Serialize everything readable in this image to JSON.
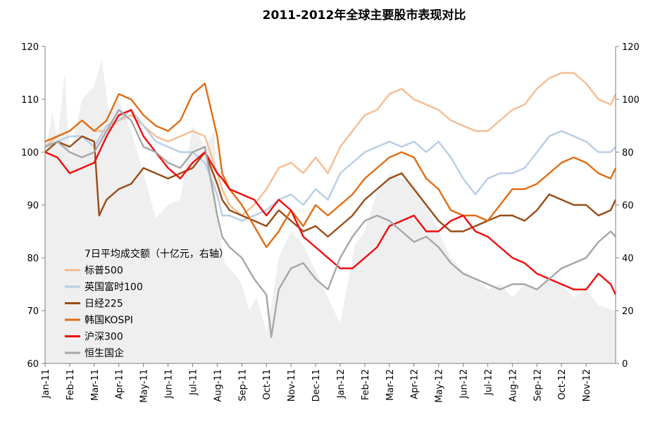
{
  "chart_data": {
    "type": "line",
    "title": "2011-2012年全球主要股市表现对比",
    "x_axis": {
      "tick_labels": [
        "Jan-11",
        "Feb-11",
        "Mar-11",
        "Apr-11",
        "May-11",
        "Jun-11",
        "Jul-11",
        "Aug-11",
        "Sep-11",
        "Oct-11",
        "Nov-11",
        "Dec-11",
        "Jan-12",
        "Feb-12",
        "Mar-12",
        "Apr-12",
        "May-12",
        "Jun-12",
        "Jul-12",
        "Aug-12",
        "Sep-12",
        "Oct-12",
        "Nov-12"
      ],
      "range_months": [
        0,
        23.2
      ]
    },
    "y_left": {
      "ticks": [
        60,
        70,
        80,
        90,
        100,
        110,
        120
      ],
      "range": [
        60,
        120
      ]
    },
    "y_right": {
      "ticks": [
        0,
        20,
        40,
        60,
        80,
        100,
        120
      ],
      "range": [
        0,
        120
      ]
    },
    "grid": false,
    "legend_position": "lower-left",
    "series": [
      {
        "name": "7日平均成交额（十亿元，右轴）",
        "kind": "area",
        "axis": "right",
        "color": "#efefef",
        "x": [
          0,
          0.3,
          0.5,
          0.8,
          1.0,
          1.5,
          2.0,
          2.3,
          2.6,
          3.0,
          3.5,
          4.0,
          4.5,
          5.0,
          5.5,
          6.0,
          6.5,
          6.9,
          7.0,
          7.3,
          7.6,
          8.0,
          8.3,
          8.6,
          9.0,
          9.2,
          9.5,
          10.0,
          10.5,
          11.0,
          11.5,
          12.0,
          12.3,
          12.6,
          13.0,
          13.5,
          14.0,
          14.5,
          15.0,
          15.5,
          16.0,
          16.5,
          17.0,
          17.5,
          18.0,
          18.5,
          19.0,
          19.5,
          20.0,
          20.5,
          21.0,
          21.5,
          22.0,
          22.5,
          23.2
        ],
        "y": [
          80,
          95,
          85,
          110,
          78,
          100,
          105,
          115,
          95,
          100,
          88,
          72,
          55,
          60,
          62,
          90,
          82,
          88,
          55,
          38,
          35,
          30,
          20,
          25,
          12,
          22,
          40,
          50,
          45,
          35,
          25,
          15,
          30,
          45,
          50,
          65,
          72,
          70,
          68,
          60,
          50,
          40,
          35,
          32,
          28,
          30,
          25,
          30,
          28,
          32,
          30,
          25,
          28,
          22,
          20
        ]
      },
      {
        "name": "标普500",
        "color": "#f4bd92",
        "axis": "left",
        "x": [
          0,
          0.5,
          1,
          1.5,
          2,
          2.5,
          3,
          3.5,
          4,
          4.5,
          5,
          5.5,
          6,
          6.5,
          7,
          7.2,
          7.5,
          8,
          8.5,
          9,
          9.5,
          10,
          10.5,
          11,
          11.5,
          12,
          12.5,
          13,
          13.5,
          14,
          14.5,
          15,
          15.5,
          16,
          16.5,
          17,
          17.5,
          18,
          18.5,
          19,
          19.5,
          20,
          20.5,
          21,
          21.5,
          22,
          22.5,
          23,
          23.2
        ],
        "y": [
          101,
          103,
          104,
          106,
          104,
          104,
          106,
          107,
          105,
          103,
          102,
          103,
          104,
          103,
          96,
          93,
          90,
          88,
          90,
          93,
          97,
          98,
          96,
          99,
          96,
          101,
          104,
          107,
          108,
          111,
          112,
          110,
          109,
          108,
          106,
          105,
          104,
          104,
          106,
          108,
          109,
          112,
          114,
          115,
          115,
          113,
          110,
          109,
          111
        ]
      },
      {
        "name": "英国富时100",
        "color": "#b8cde5",
        "axis": "left",
        "x": [
          0,
          0.5,
          1,
          1.5,
          2,
          2.5,
          3,
          3.5,
          4,
          4.5,
          5,
          5.5,
          6,
          6.5,
          7,
          7.2,
          7.5,
          8,
          8.5,
          9,
          9.5,
          10,
          10.5,
          11,
          11.5,
          12,
          12.5,
          13,
          13.5,
          14,
          14.5,
          15,
          15.5,
          16,
          16.5,
          17,
          17.5,
          18,
          18.5,
          19,
          19.5,
          20,
          20.5,
          21,
          21.5,
          22,
          22.5,
          23,
          23.2
        ],
        "y": [
          101,
          102,
          103,
          103,
          101,
          105,
          106,
          108,
          105,
          102,
          101,
          100,
          100,
          98,
          92,
          88,
          88,
          87,
          88,
          89,
          91,
          92,
          90,
          93,
          91,
          96,
          98,
          100,
          101,
          102,
          101,
          102,
          100,
          102,
          99,
          95,
          92,
          95,
          96,
          96,
          97,
          100,
          103,
          104,
          103,
          102,
          100,
          100,
          101
        ]
      },
      {
        "name": "日经225",
        "color": "#984c15",
        "axis": "left",
        "x": [
          0,
          0.5,
          1,
          1.5,
          2,
          2.2,
          2.5,
          3,
          3.5,
          4,
          4.5,
          5,
          5.5,
          6,
          6.5,
          7,
          7.2,
          7.5,
          8,
          8.5,
          9,
          9.5,
          10,
          10.5,
          11,
          11.5,
          12,
          12.5,
          13,
          13.5,
          14,
          14.5,
          15,
          15.5,
          16,
          16.5,
          17,
          17.5,
          18,
          18.5,
          19,
          19.5,
          20,
          20.5,
          21,
          21.5,
          22,
          22.5,
          23,
          23.2
        ],
        "y": [
          100,
          102,
          101,
          103,
          102,
          88,
          91,
          93,
          94,
          97,
          96,
          95,
          96,
          97,
          100,
          94,
          91,
          89,
          88,
          87,
          86,
          89,
          87,
          85,
          86,
          84,
          86,
          88,
          91,
          93,
          95,
          96,
          93,
          90,
          87,
          85,
          85,
          86,
          87,
          88,
          88,
          87,
          89,
          92,
          91,
          90,
          90,
          88,
          89,
          91
        ]
      },
      {
        "name": "韩国KOSPI",
        "color": "#e06d14",
        "axis": "left",
        "x": [
          0,
          0.5,
          1,
          1.5,
          2,
          2.5,
          3,
          3.5,
          4,
          4.5,
          5,
          5.5,
          6,
          6.5,
          7,
          7.2,
          7.5,
          8,
          8.5,
          9,
          9.5,
          10,
          10.5,
          11,
          11.5,
          12,
          12.5,
          13,
          13.5,
          14,
          14.5,
          15,
          15.5,
          16,
          16.5,
          17,
          17.5,
          18,
          18.5,
          19,
          19.5,
          20,
          20.5,
          21,
          21.5,
          22,
          22.5,
          23,
          23.2
        ],
        "y": [
          102,
          103,
          104,
          106,
          104,
          106,
          111,
          110,
          107,
          105,
          104,
          106,
          111,
          113,
          103,
          96,
          93,
          90,
          86,
          82,
          85,
          89,
          86,
          90,
          88,
          90,
          92,
          95,
          97,
          99,
          100,
          99,
          95,
          93,
          89,
          88,
          88,
          87,
          90,
          93,
          93,
          94,
          96,
          98,
          99,
          98,
          96,
          95,
          97
        ]
      },
      {
        "name": "沪深300",
        "color": "#f20c0c",
        "axis": "left",
        "x": [
          0,
          0.5,
          1,
          1.5,
          2,
          2.5,
          3,
          3.5,
          4,
          4.5,
          5,
          5.5,
          6,
          6.5,
          7,
          7.2,
          7.5,
          8,
          8.5,
          9,
          9.5,
          10,
          10.5,
          11,
          11.5,
          12,
          12.5,
          13,
          13.5,
          14,
          14.5,
          15,
          15.5,
          16,
          16.5,
          17,
          17.5,
          18,
          18.5,
          19,
          19.5,
          20,
          20.5,
          21,
          21.5,
          22,
          22.5,
          23,
          23.2
        ],
        "y": [
          100,
          99,
          96,
          97,
          98,
          103,
          107,
          108,
          103,
          100,
          97,
          95,
          98,
          100,
          96,
          95,
          93,
          92,
          91,
          88,
          91,
          89,
          84,
          82,
          80,
          78,
          78,
          80,
          82,
          86,
          87,
          88,
          85,
          85,
          87,
          88,
          85,
          84,
          82,
          80,
          79,
          77,
          76,
          75,
          74,
          74,
          77,
          75,
          73
        ]
      },
      {
        "name": "恒生国企",
        "color": "#a6a6a6",
        "axis": "left",
        "x": [
          0,
          0.5,
          1,
          1.5,
          2,
          2.5,
          3,
          3.5,
          4,
          4.5,
          5,
          5.5,
          6,
          6.5,
          7,
          7.2,
          7.5,
          8,
          8.5,
          9,
          9.2,
          9.5,
          10,
          10.5,
          11,
          11.5,
          12,
          12.5,
          13,
          13.5,
          14,
          14.5,
          15,
          15.5,
          16,
          16.5,
          17,
          17.5,
          18,
          18.5,
          19,
          19.5,
          20,
          20.5,
          21,
          21.5,
          22,
          22.5,
          23,
          23.2
        ],
        "y": [
          101,
          102,
          100,
          99,
          100,
          104,
          108,
          106,
          101,
          100,
          98,
          97,
          100,
          101,
          88,
          84,
          82,
          80,
          76,
          73,
          65,
          74,
          78,
          79,
          76,
          74,
          80,
          84,
          87,
          88,
          87,
          85,
          83,
          84,
          82,
          79,
          77,
          76,
          75,
          74,
          75,
          75,
          74,
          76,
          78,
          79,
          80,
          83,
          85,
          84
        ]
      }
    ],
    "legend": [
      "7日平均成交额（十亿元，右轴）",
      "标普500",
      "英国富时100",
      "日经225",
      "韩国KOSPI",
      "沪深300",
      "恒生国企"
    ]
  }
}
